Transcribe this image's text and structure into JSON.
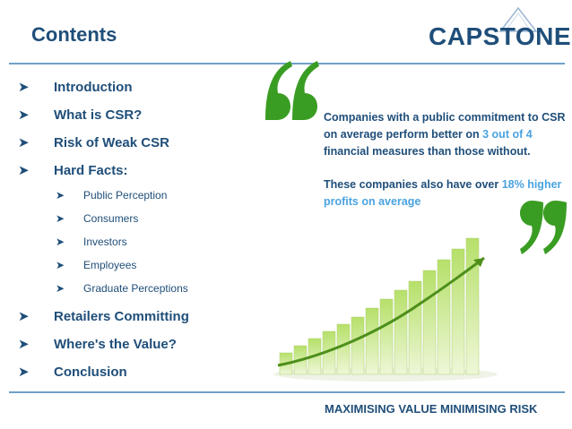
{
  "header": {
    "title": "Contents",
    "logo_text": "CAPSTONE"
  },
  "menu": [
    {
      "label": "Introduction"
    },
    {
      "label": "What is CSR?"
    },
    {
      "label": "Risk of Weak CSR"
    },
    {
      "label": "Hard Facts:"
    },
    {
      "label": "Retailers Committing"
    },
    {
      "label": "Where's the Value?"
    },
    {
      "label": "Conclusion"
    }
  ],
  "submenu": [
    {
      "label": "Public Perception"
    },
    {
      "label": "Consumers"
    },
    {
      "label": "Investors"
    },
    {
      "label": "Employees"
    },
    {
      "label": "Graduate Perceptions"
    }
  ],
  "quote": {
    "line1": "Companies with a public commitment to CSR on average perform better on ",
    "highlight1": "3 out of 4",
    "line1_end": " financial measures than those without.",
    "line2": "These companies also have over ",
    "highlight2": "18% higher profits on average"
  },
  "footer": {
    "text": "MAXIMISING VALUE MINIMISING RISK"
  },
  "colors": {
    "primary": "#1f4e79",
    "highlight": "#4aa3df",
    "quote_mark": "#3a9d23",
    "rule": "#6fa0c9"
  },
  "icons": {
    "bullet": "arrow-bullet-icon",
    "logo": "capstone-logo",
    "quote_open": "open-quote-icon",
    "quote_close": "close-quote-icon",
    "chart": "growth-bar-chart-image"
  }
}
